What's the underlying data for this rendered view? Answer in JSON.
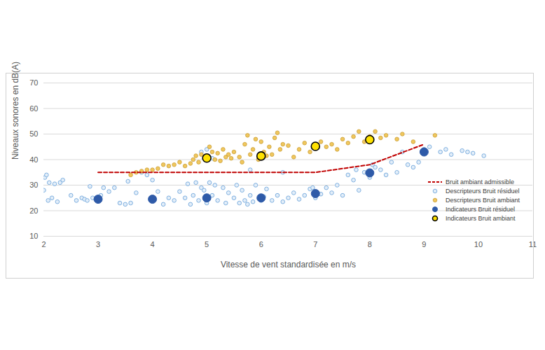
{
  "chart_data": {
    "type": "scatter",
    "xlabel": "Vitesse de vent standardisée en m/s",
    "ylabel": "Niveaux sonores en dB(A)",
    "xlim": [
      2,
      11
    ],
    "xticks": [
      2,
      3,
      4,
      5,
      6,
      7,
      8,
      9,
      10,
      11
    ],
    "ylim": [
      10,
      70
    ],
    "yticks": [
      10,
      20,
      30,
      40,
      50,
      60,
      70
    ],
    "grid": true,
    "legend": "right",
    "series": [
      {
        "name": "Bruit ambiant admissible",
        "type": "line",
        "line_style": "dashed",
        "color": "#c00000",
        "x": [
          3,
          4,
          5,
          6,
          7,
          8,
          9
        ],
        "values": [
          35,
          35,
          35,
          35,
          35,
          38,
          46
        ]
      },
      {
        "name": "Descripteurs Bruit résiduel",
        "type": "scatter",
        "marker": "circle_hollow",
        "color": "#7fb0e0",
        "x": [
          2.0,
          2.02,
          2.05,
          2.08,
          2.1,
          2.15,
          2.2,
          2.25,
          2.3,
          2.35,
          2.5,
          2.6,
          2.7,
          2.75,
          2.8,
          2.85,
          2.9,
          3.0,
          3.05,
          3.1,
          3.2,
          3.3,
          3.4,
          3.5,
          3.55,
          3.6,
          3.7,
          3.8,
          3.9,
          4.0,
          4.1,
          4.2,
          4.3,
          4.4,
          4.5,
          4.6,
          4.65,
          4.7,
          4.75,
          4.8,
          4.85,
          4.9,
          4.95,
          5.0,
          5.05,
          5.1,
          5.15,
          5.2,
          5.3,
          5.35,
          5.4,
          5.5,
          5.55,
          5.6,
          5.65,
          5.7,
          5.75,
          5.8,
          5.85,
          5.9,
          6.0,
          6.05,
          6.1,
          6.2,
          6.3,
          6.4,
          6.5,
          6.6,
          6.7,
          6.8,
          6.9,
          6.95,
          7.0,
          7.1,
          7.2,
          7.3,
          7.4,
          7.5,
          7.6,
          7.7,
          7.75,
          7.8,
          7.9,
          8.0,
          8.05,
          8.1,
          8.2,
          8.3,
          8.4,
          8.5,
          8.6,
          8.7,
          8.8,
          8.9,
          9.0,
          9.1,
          9.3,
          9.4,
          9.5,
          9.7,
          9.8,
          9.9,
          10.1,
          4.9,
          5.0,
          5.1,
          6.4,
          5.8
        ],
        "values": [
          28,
          33,
          34,
          24,
          31,
          25,
          30.5,
          23.5,
          31,
          32,
          26,
          24,
          25,
          24.5,
          24,
          29.5,
          25,
          25,
          26,
          29,
          27.5,
          29,
          23,
          22.5,
          31.5,
          23,
          27,
          35,
          34,
          32,
          27.5,
          22.5,
          25,
          24,
          27.5,
          25,
          30.5,
          22.5,
          26,
          31,
          24,
          29,
          28,
          23,
          31,
          26,
          30,
          24,
          29,
          23,
          27,
          25,
          30,
          23,
          28,
          24,
          22.5,
          26,
          23.5,
          30,
          24,
          25.5,
          28.5,
          24,
          26,
          23.5,
          25,
          27,
          24.5,
          26,
          28.5,
          29,
          25,
          26.5,
          29,
          27,
          30,
          26,
          34,
          32,
          36,
          28,
          35,
          33,
          38,
          37,
          36,
          34,
          39,
          35,
          43,
          38,
          37,
          39,
          44,
          45,
          43,
          44,
          42,
          43.5,
          43,
          42.5,
          41.5,
          43,
          44,
          40.5,
          35,
          36
        ]
      },
      {
        "name": "Descripteurs Bruit ambiant",
        "type": "scatter",
        "marker": "circle",
        "color": "#f0c75e",
        "x": [
          3.6,
          3.7,
          3.8,
          3.9,
          4.0,
          4.1,
          4.2,
          4.3,
          4.4,
          4.5,
          4.6,
          4.7,
          4.75,
          4.8,
          4.85,
          4.9,
          5.0,
          5.05,
          5.1,
          5.15,
          5.2,
          5.25,
          5.3,
          5.35,
          5.4,
          5.45,
          5.5,
          5.6,
          5.65,
          5.7,
          5.75,
          5.8,
          5.85,
          5.9,
          5.95,
          6.0,
          6.05,
          6.1,
          6.15,
          6.2,
          6.25,
          6.3,
          6.35,
          6.4,
          6.5,
          6.6,
          6.7,
          6.8,
          6.9,
          7.0,
          7.1,
          7.2,
          7.3,
          7.4,
          7.5,
          7.6,
          7.7,
          7.8,
          7.9,
          8.0,
          8.1,
          8.2,
          8.3,
          8.5,
          8.6,
          8.8,
          9.2
        ],
        "values": [
          34,
          35,
          35.5,
          36,
          36,
          36.5,
          38,
          37.5,
          38,
          39,
          37.5,
          38.5,
          40,
          41.5,
          39,
          42,
          41,
          45,
          43,
          40,
          42.5,
          39.5,
          44,
          41,
          42,
          40.5,
          43,
          41,
          39,
          46,
          49.5,
          42,
          44,
          48,
          40,
          47,
          43,
          41.5,
          45,
          42,
          48.5,
          50.5,
          44,
          46,
          45.5,
          41,
          44,
          46.5,
          43,
          44.5,
          47,
          45,
          46,
          44,
          48,
          46.5,
          49,
          51,
          47,
          49,
          51,
          48.5,
          49.5,
          48,
          50,
          47,
          49.5
        ]
      },
      {
        "name": "Indicateurs Bruit résiduel",
        "type": "scatter",
        "marker": "circle_large",
        "color": "#2e5aa8",
        "x": [
          3,
          4,
          5,
          6,
          7,
          8,
          9
        ],
        "values": [
          24.5,
          24.5,
          25,
          25,
          26.7,
          34.8,
          43
        ]
      },
      {
        "name": "Indicateurs Bruit ambiant",
        "type": "scatter",
        "marker": "circle_large_outlined",
        "color": "#ffe200",
        "x": [
          5,
          6,
          7,
          8
        ],
        "values": [
          40.6,
          41.4,
          45.2,
          47.8
        ]
      }
    ]
  }
}
